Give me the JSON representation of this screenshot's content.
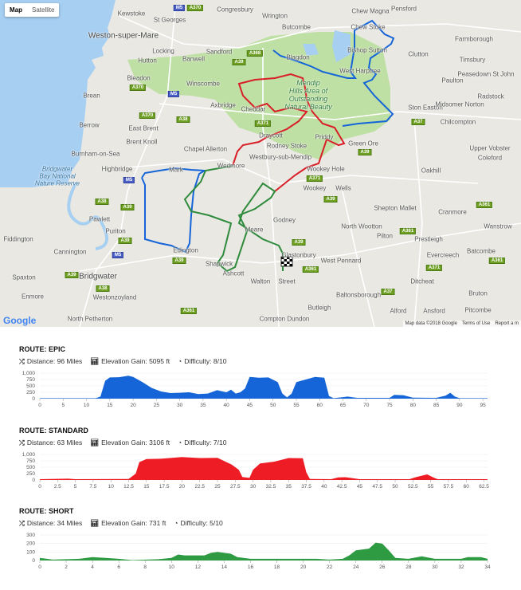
{
  "map": {
    "map_type_buttons": [
      "Map",
      "Satellite"
    ],
    "selected_map_type": "Map",
    "logo": "Google",
    "attribution": [
      "Map data ©2018 Google",
      "Terms of Use",
      "Report a m"
    ],
    "places": [
      "Kewstoke",
      "St Georges",
      "Congresbury",
      "Wrington",
      "Butcombe",
      "Chew Magna",
      "Chew Stoke",
      "Pensford",
      "Farmborough",
      "Weston-super-Mare",
      "Locking",
      "Sandford",
      "Banwell",
      "Hutton",
      "Blagdon",
      "Bishop Sutton",
      "Timsbury",
      "Clutton",
      "Peasedown\nSt John",
      "West Harptree",
      "Bleadon",
      "Winscombe",
      "Paulton",
      "Radstock",
      "Brean",
      "Axbridge",
      "Cheddar",
      "Ston Easton",
      "Midsomer\nNorton",
      "Berrow",
      "East Brent",
      "Chilcompton",
      "Brent Knoll",
      "Chapel\nAllerton",
      "Draycott",
      "Rodney Stoke",
      "Priddy",
      "Green Ore",
      "Upper Vobster",
      "Burnham-on-Sea",
      "Westbury-sub-Mendip",
      "Coleford",
      "Highbridge",
      "Mark",
      "Wedmore",
      "Wookey Hole",
      "Oakhill",
      "Wookey",
      "Wells",
      "Pawlett",
      "Shepton Mallet",
      "Cranmore",
      "Godney",
      "Puriton",
      "North\nWootton",
      "Wanstrow",
      "Fiddington",
      "Pilton",
      "Prestleigh",
      "Cannington",
      "Meare",
      "Batcombe",
      "Edington",
      "Glastonbury",
      "West Pennard",
      "Evercreech",
      "Shapwick",
      "Ashcott",
      "Spaxton",
      "Bridgwater",
      "Walton",
      "Street",
      "Ditcheat",
      "Enmore",
      "Westonzoyland",
      "Baltonsborough",
      "Bruton",
      "Butleigh",
      "North\nPetherton",
      "Compton\nDundon",
      "Ansford",
      "Pitcombe",
      "Alford"
    ],
    "park_label": "Mendip\nHills Area of\nOutstanding\nNatural Beauty",
    "water_label": "Bridgwater\nBay National\nNature Reserve",
    "road_badges": [
      "M5",
      "A370",
      "A368",
      "A39",
      "A370",
      "M5",
      "A371",
      "A370",
      "A38",
      "A37",
      "A39",
      "M5",
      "A38",
      "A39",
      "A39",
      "A371",
      "A39",
      "A39",
      "A361",
      "A39",
      "A361",
      "A361",
      "A37",
      "A371",
      "A361",
      "A39",
      "A38",
      "M5",
      "A361"
    ]
  },
  "routes": [
    {
      "title": "ROUTE: EPIC",
      "distance": "Distance: 96 Miles",
      "elevation": "Elevation Gain: 5095 ft",
      "difficulty": "Difficulty: 8/10",
      "color": "#1565d8"
    },
    {
      "title": "ROUTE: STANDARD",
      "distance": "Distance: 63 Miles",
      "elevation": "Elevation Gain: 3106 ft",
      "difficulty": "Difficulty: 7/10",
      "color": "#ee1c24"
    },
    {
      "title": "ROUTE: SHORT",
      "distance": "Distance: 34 Miles",
      "elevation": "Elevation Gain: 731 ft",
      "difficulty": "Difficulty: 5/10",
      "color": "#2e9a42"
    }
  ],
  "icons": {
    "distance": "shuffle-icon",
    "elevation": "bar-chart-icon",
    "difficulty": "dashboard-icon"
  },
  "chart_data": [
    {
      "type": "area",
      "xlim": [
        0,
        96
      ],
      "ylim": [
        0,
        1000
      ],
      "grid": true,
      "xticks": [
        "0",
        "5",
        "10",
        "15",
        "20",
        "25",
        "30",
        "35",
        "40",
        "45",
        "50",
        "55",
        "60",
        "65",
        "70",
        "75",
        "80",
        "85",
        "90",
        "95"
      ],
      "yticks": [
        "0",
        "250",
        "500",
        "750",
        "1,000"
      ],
      "x": [
        0,
        12,
        13,
        14,
        15,
        17,
        19,
        20,
        22,
        24,
        26,
        28,
        30,
        32,
        34,
        36,
        38,
        40,
        41,
        42,
        43,
        44,
        45,
        47,
        49,
        51,
        52,
        53,
        54,
        55,
        57,
        59,
        61,
        62,
        63,
        65,
        66,
        68,
        75,
        76,
        78,
        80,
        85,
        87,
        88,
        89,
        90,
        96
      ],
      "y": [
        20,
        20,
        80,
        700,
        830,
        840,
        900,
        850,
        650,
        420,
        280,
        220,
        230,
        250,
        180,
        200,
        330,
        250,
        350,
        200,
        250,
        400,
        850,
        820,
        830,
        650,
        200,
        50,
        200,
        650,
        750,
        850,
        820,
        100,
        20,
        60,
        80,
        30,
        30,
        150,
        130,
        40,
        30,
        120,
        230,
        80,
        20,
        20
      ]
    },
    {
      "type": "area",
      "xlim": [
        0,
        63
      ],
      "ylim": [
        0,
        1000
      ],
      "grid": true,
      "xticks": [
        "0",
        "2.5",
        "5",
        "7.5",
        "10",
        "12.5",
        "15",
        "17.5",
        "20",
        "22.5",
        "25",
        "27.5",
        "30",
        "32.5",
        "35",
        "37.5",
        "40",
        "42.5",
        "45",
        "47.5",
        "50",
        "52.5",
        "55",
        "57.5",
        "60",
        "62.5"
      ],
      "yticks": [
        "0",
        "250",
        "500",
        "750",
        "1,000"
      ],
      "x": [
        0,
        4,
        5,
        12.5,
        13.5,
        14,
        15,
        17,
        20,
        22.5,
        25,
        27,
        28,
        28.5,
        29.5,
        30,
        31,
        33,
        35,
        37,
        37.5,
        38,
        41,
        42,
        43,
        45,
        52,
        53,
        54.5,
        55.5,
        56,
        63
      ],
      "y": [
        30,
        50,
        30,
        40,
        250,
        700,
        820,
        830,
        900,
        860,
        870,
        600,
        400,
        120,
        80,
        400,
        650,
        720,
        860,
        850,
        300,
        40,
        30,
        100,
        110,
        30,
        30,
        120,
        220,
        80,
        30,
        30
      ]
    },
    {
      "type": "area",
      "xlim": [
        0,
        34
      ],
      "ylim": [
        0,
        300
      ],
      "grid": true,
      "xticks": [
        "0",
        "2",
        "4",
        "6",
        "8",
        "10",
        "12",
        "14",
        "16",
        "18",
        "20",
        "22",
        "24",
        "26",
        "28",
        "30",
        "32",
        "34"
      ],
      "yticks": [
        "0",
        "100",
        "200",
        "300"
      ],
      "x": [
        0,
        1,
        3,
        4,
        5,
        6,
        7,
        9,
        10,
        10.5,
        11,
        12.5,
        13,
        13.5,
        14.5,
        15,
        16,
        21,
        22,
        23,
        23.5,
        24,
        25,
        25.5,
        26,
        26.5,
        27,
        28,
        29,
        30,
        32,
        32.5,
        33.5,
        34
      ],
      "y": [
        30,
        10,
        20,
        40,
        30,
        20,
        5,
        15,
        30,
        70,
        60,
        60,
        90,
        100,
        80,
        40,
        20,
        20,
        10,
        20,
        60,
        120,
        140,
        210,
        200,
        120,
        30,
        20,
        50,
        20,
        20,
        40,
        40,
        20
      ]
    }
  ]
}
